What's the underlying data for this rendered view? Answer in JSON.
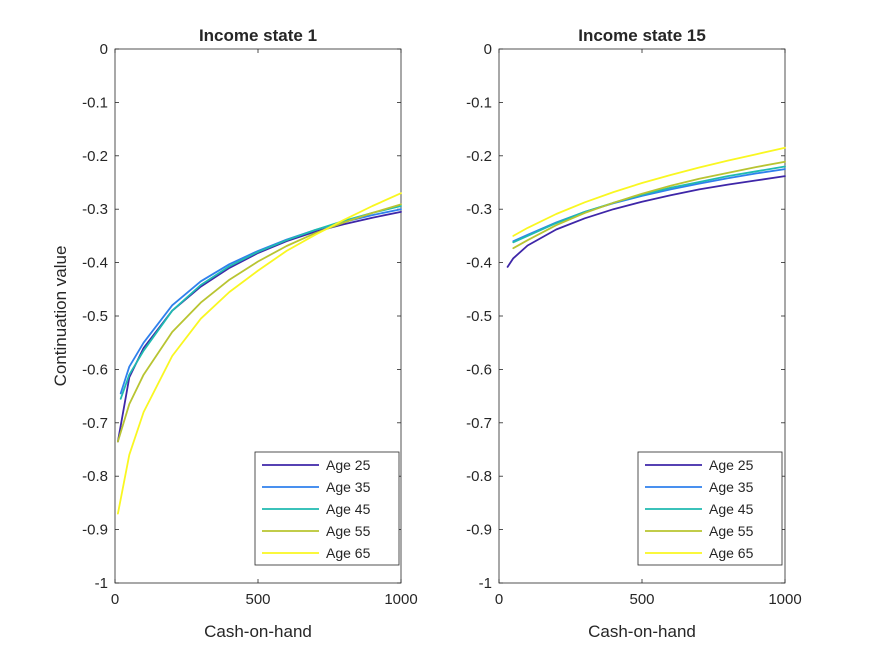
{
  "chart_data": [
    {
      "type": "line",
      "title": "Income state 1",
      "xlabel": "Cash-on-hand",
      "ylabel": "Continuation value",
      "xlim": [
        0,
        1000
      ],
      "ylim": [
        -1,
        0
      ],
      "xticks": [
        "0",
        "500",
        "1000"
      ],
      "yticks": [
        "-1",
        "-0.9",
        "-0.8",
        "-0.7",
        "-0.6",
        "-0.5",
        "-0.4",
        "-0.3",
        "-0.2",
        "-0.1",
        "0"
      ],
      "grid": false,
      "legend_location": "bottom-right",
      "series": [
        {
          "name": "Age 25",
          "color": "#3e26a8",
          "x": [
            10,
            50,
            100,
            200,
            300,
            400,
            500,
            600,
            700,
            800,
            900,
            1000
          ],
          "y": [
            -0.735,
            -0.615,
            -0.56,
            -0.49,
            -0.445,
            -0.41,
            -0.382,
            -0.36,
            -0.342,
            -0.328,
            -0.316,
            -0.305
          ]
        },
        {
          "name": "Age 35",
          "color": "#2f80ed",
          "x": [
            20,
            50,
            100,
            200,
            300,
            400,
            500,
            600,
            700,
            800,
            900,
            1000
          ],
          "y": [
            -0.645,
            -0.595,
            -0.55,
            -0.48,
            -0.435,
            -0.403,
            -0.378,
            -0.357,
            -0.339,
            -0.324,
            -0.311,
            -0.3
          ]
        },
        {
          "name": "Age 45",
          "color": "#1fbab0",
          "x": [
            20,
            50,
            100,
            200,
            300,
            400,
            500,
            600,
            700,
            800,
            900,
            1000
          ],
          "y": [
            -0.655,
            -0.61,
            -0.565,
            -0.49,
            -0.442,
            -0.407,
            -0.38,
            -0.358,
            -0.339,
            -0.322,
            -0.307,
            -0.294
          ]
        },
        {
          "name": "Age 55",
          "color": "#b8c431",
          "x": [
            10,
            50,
            100,
            200,
            300,
            400,
            500,
            600,
            700,
            800,
            900,
            1000
          ],
          "y": [
            -0.735,
            -0.665,
            -0.61,
            -0.53,
            -0.475,
            -0.432,
            -0.398,
            -0.369,
            -0.345,
            -0.325,
            -0.307,
            -0.291
          ]
        },
        {
          "name": "Age 65",
          "color": "#f9f721",
          "x": [
            10,
            50,
            100,
            200,
            300,
            400,
            500,
            600,
            700,
            800,
            900,
            1000
          ],
          "y": [
            -0.87,
            -0.76,
            -0.68,
            -0.575,
            -0.505,
            -0.455,
            -0.415,
            -0.378,
            -0.348,
            -0.32,
            -0.294,
            -0.27
          ]
        }
      ],
      "legend": [
        "Age 25",
        "Age 35",
        "Age 45",
        "Age 55",
        "Age 65"
      ]
    },
    {
      "type": "line",
      "title": "Income state 15",
      "xlabel": "Cash-on-hand",
      "ylabel": "",
      "xlim": [
        0,
        1000
      ],
      "ylim": [
        -1,
        0
      ],
      "xticks": [
        "0",
        "500",
        "1000"
      ],
      "yticks": [
        "-1",
        "-0.9",
        "-0.8",
        "-0.7",
        "-0.6",
        "-0.5",
        "-0.4",
        "-0.3",
        "-0.2",
        "-0.1",
        "0"
      ],
      "grid": false,
      "legend_location": "bottom-right",
      "series": [
        {
          "name": "Age 25",
          "color": "#3e26a8",
          "x": [
            30,
            50,
            100,
            200,
            300,
            400,
            500,
            600,
            700,
            800,
            900,
            1000
          ],
          "y": [
            -0.408,
            -0.392,
            -0.368,
            -0.338,
            -0.317,
            -0.3,
            -0.286,
            -0.274,
            -0.263,
            -0.254,
            -0.246,
            -0.238
          ]
        },
        {
          "name": "Age 35",
          "color": "#2f80ed",
          "x": [
            50,
            100,
            200,
            300,
            400,
            500,
            600,
            700,
            800,
            900,
            1000
          ],
          "y": [
            -0.36,
            -0.348,
            -0.325,
            -0.305,
            -0.289,
            -0.275,
            -0.263,
            -0.252,
            -0.242,
            -0.233,
            -0.225
          ]
        },
        {
          "name": "Age 45",
          "color": "#1fbab0",
          "x": [
            50,
            100,
            200,
            300,
            400,
            500,
            600,
            700,
            800,
            900,
            1000
          ],
          "y": [
            -0.362,
            -0.35,
            -0.326,
            -0.305,
            -0.288,
            -0.273,
            -0.26,
            -0.249,
            -0.238,
            -0.229,
            -0.22
          ]
        },
        {
          "name": "Age 55",
          "color": "#b8c431",
          "x": [
            50,
            100,
            200,
            300,
            400,
            500,
            600,
            700,
            800,
            900,
            1000
          ],
          "y": [
            -0.373,
            -0.358,
            -0.33,
            -0.307,
            -0.288,
            -0.271,
            -0.256,
            -0.243,
            -0.232,
            -0.221,
            -0.211
          ]
        },
        {
          "name": "Age 65",
          "color": "#f9f721",
          "x": [
            50,
            100,
            200,
            300,
            400,
            500,
            600,
            700,
            800,
            900,
            1000
          ],
          "y": [
            -0.35,
            -0.335,
            -0.309,
            -0.287,
            -0.268,
            -0.251,
            -0.236,
            -0.222,
            -0.209,
            -0.197,
            -0.185
          ]
        }
      ],
      "legend": [
        "Age 25",
        "Age 35",
        "Age 45",
        "Age 55",
        "Age 65"
      ]
    }
  ]
}
